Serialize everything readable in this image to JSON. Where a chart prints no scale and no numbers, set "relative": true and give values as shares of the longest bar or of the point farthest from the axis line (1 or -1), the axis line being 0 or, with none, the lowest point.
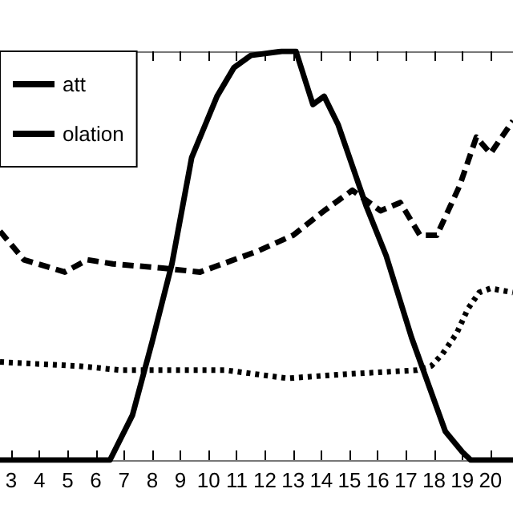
{
  "chart_data": {
    "type": "line",
    "relative": true,
    "xlim": [
      2.6,
      20.8
    ],
    "xticks": [
      3,
      4,
      5,
      6,
      7,
      8,
      9,
      10,
      11,
      12,
      13,
      14,
      15,
      16,
      17,
      18,
      19,
      20
    ],
    "legend": "top left",
    "grid": false,
    "marker": "none",
    "tick_labels": "x",
    "series": [
      {
        "name": "att",
        "color": "#000000",
        "line_style": "solid",
        "x": [
          2.6,
          6.5,
          7.3,
          8.0,
          8.7,
          9.4,
          10.3,
          10.9,
          11.5,
          12.6,
          13.1,
          13.7,
          14.1,
          14.6,
          15.6,
          16.3,
          17.2,
          18.4,
          19.0,
          19.3,
          20.8
        ],
        "values": [
          0,
          0,
          0.11,
          0.29,
          0.48,
          0.74,
          0.89,
          0.96,
          0.99,
          1,
          1,
          0.87,
          0.89,
          0.82,
          0.62,
          0.5,
          0.3,
          0.07,
          0.02,
          0,
          0
        ]
      },
      {
        "color": "#000000",
        "line_style": "dashed",
        "x": [
          2.6,
          3.45,
          4.9,
          5.7,
          6.6,
          8.3,
          9.7,
          11.7,
          13.0,
          14.1,
          15.1,
          16.1,
          16.8,
          17.5,
          18.1,
          18.9,
          19.5,
          20.0,
          20.8
        ],
        "values": [
          0.56,
          0.49,
          0.46,
          0.49,
          0.48,
          0.47,
          0.46,
          0.51,
          0.55,
          0.61,
          0.66,
          0.61,
          0.63,
          0.55,
          0.55,
          0.67,
          0.79,
          0.75,
          0.83
        ]
      },
      {
        "name": "olation",
        "color": "#000000",
        "line_style": "dotted",
        "x": [
          2.6,
          5.4,
          6.9,
          8.9,
          10.6,
          12.8,
          14.8,
          17.4,
          17.9,
          18.3,
          18.8,
          19.2,
          19.6,
          20.0,
          20.8
        ],
        "values": [
          0.24,
          0.23,
          0.22,
          0.22,
          0.22,
          0.2,
          0.21,
          0.22,
          0.23,
          0.26,
          0.31,
          0.37,
          0.41,
          0.42,
          0.41
        ]
      }
    ]
  }
}
